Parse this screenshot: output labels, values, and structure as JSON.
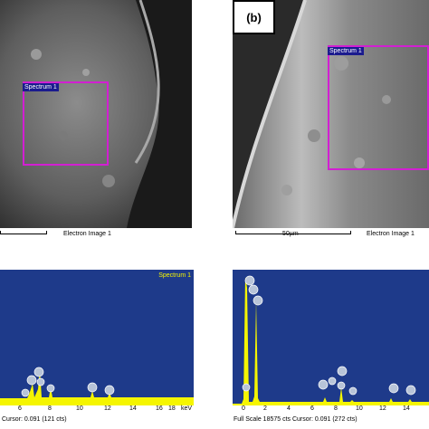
{
  "panel_b": {
    "letter": "(b)"
  },
  "sem_left": {
    "spectrum_label": "Spectrum 1",
    "caption": "Electron Image 1"
  },
  "sem_right": {
    "spectrum_label": "Spectrum 1",
    "scale_text": "50µm",
    "caption": "Electron Image 1"
  },
  "eds_left": {
    "title": "Spectrum 1",
    "ticks": [
      "6",
      "8",
      "10",
      "12",
      "14",
      "16",
      "18"
    ],
    "unit": "keV",
    "footer": "Cursor: 0.091  (121 cts)"
  },
  "eds_right": {
    "ticks": [
      "0",
      "2",
      "4",
      "6",
      "8",
      "10",
      "12",
      "14"
    ],
    "footer": "Full Scale 18575 cts Cursor: 0.091  (272 cts)"
  },
  "colors": {
    "spectrum_box": "#d21fd2",
    "spectrum_label_bg": "#1b1b8e",
    "eds_background": "#1e3a8a",
    "eds_trace": "#f5f500"
  }
}
